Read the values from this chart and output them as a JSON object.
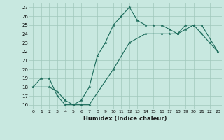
{
  "xlabel": "Humidex (Indice chaleur)",
  "xlim": [
    -0.5,
    23.5
  ],
  "ylim": [
    15.5,
    27.5
  ],
  "xticks": [
    0,
    1,
    2,
    3,
    4,
    5,
    6,
    7,
    8,
    9,
    10,
    11,
    12,
    13,
    14,
    15,
    16,
    17,
    18,
    19,
    20,
    21,
    22,
    23
  ],
  "yticks": [
    16,
    17,
    18,
    19,
    20,
    21,
    22,
    23,
    24,
    25,
    26,
    27
  ],
  "bg_color": "#c8e8e0",
  "grid_color": "#a0c8bc",
  "line_color": "#1a6b5a",
  "line1_x": [
    0,
    1,
    2,
    3,
    4,
    5,
    6,
    7,
    8,
    9,
    10,
    11,
    12,
    13,
    14,
    15,
    16,
    17,
    18,
    19,
    20,
    21,
    22,
    23
  ],
  "line1_y": [
    18,
    19,
    19,
    17,
    16,
    16,
    16.5,
    18,
    21.5,
    23,
    25,
    26,
    27,
    25.5,
    25,
    25,
    25,
    24.5,
    24,
    25,
    25,
    24,
    23,
    22
  ],
  "line2_x": [
    0,
    2,
    3,
    4,
    5,
    6,
    7,
    10,
    12,
    14,
    16,
    17,
    18,
    19,
    20,
    21,
    23
  ],
  "line2_y": [
    18,
    18,
    17.5,
    16.5,
    16,
    16,
    16,
    20,
    23,
    24,
    24,
    24,
    24,
    24.5,
    25,
    25,
    22
  ]
}
